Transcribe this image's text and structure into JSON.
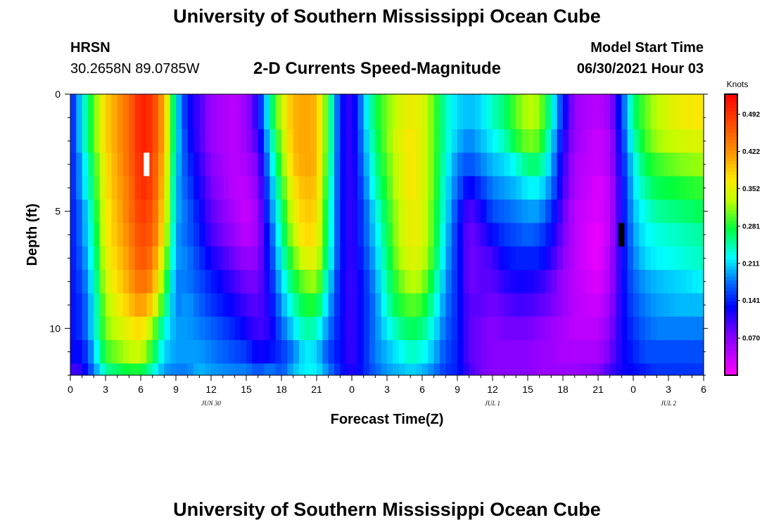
{
  "page": {
    "title_top": "University of Southern Mississippi Ocean Cube",
    "title_bottom": "University of Southern Mississippi Ocean Cube",
    "station": "HRSN",
    "coordinates": "30.2658N  89.0785W",
    "model_start_label": "Model Start Time",
    "model_start_value": "06/30/2021 Hour 03"
  },
  "chart_data": {
    "type": "heatmap",
    "title": "2-D Currents Speed-Magnitude",
    "xlabel": "Forecast Time(Z)",
    "ylabel": "Depth (ft)",
    "x_range_hours": [
      0,
      54
    ],
    "y_range_ft": [
      0,
      12
    ],
    "x_tick_labels": [
      "0",
      "3",
      "6",
      "9",
      "12",
      "15",
      "18",
      "21",
      "0",
      "3",
      "6",
      "9",
      "12",
      "15",
      "18",
      "21",
      "0",
      "3",
      "6"
    ],
    "y_tick_labels": [
      "0",
      "5",
      "10"
    ],
    "y_tick_values": [
      0,
      5,
      10
    ],
    "date_labels": [
      {
        "label": "JUN 30",
        "hour": 12
      },
      {
        "label": "JUL 1",
        "hour": 36
      },
      {
        "label": "JUL 2",
        "hour": 51
      }
    ],
    "colorbar": {
      "unit": "Knots",
      "min": 0.0,
      "max": 0.53,
      "labels": [
        "0.492",
        "0.422",
        "0.352",
        "0.281",
        "0.211",
        "0.141",
        "0.070"
      ],
      "label_values": [
        0.492,
        0.422,
        0.352,
        0.281,
        0.211,
        0.141,
        0.07
      ]
    },
    "depth_rows_ft": [
      0,
      1,
      2,
      3,
      4,
      5,
      6,
      7,
      8,
      9,
      10,
      11,
      12
    ],
    "time_profiles": [
      {
        "hour": 0,
        "speeds": [
          0.13,
          0.13,
          0.13,
          0.13,
          0.13,
          0.13,
          0.13,
          0.13,
          0.13,
          0.13,
          0.13,
          0.13,
          0.1
        ]
      },
      {
        "hour": 1,
        "speeds": [
          0.22,
          0.22,
          0.22,
          0.2,
          0.2,
          0.18,
          0.18,
          0.17,
          0.16,
          0.15,
          0.15,
          0.13,
          0.11
        ]
      },
      {
        "hour": 2,
        "speeds": [
          0.3,
          0.3,
          0.3,
          0.28,
          0.27,
          0.26,
          0.25,
          0.24,
          0.23,
          0.22,
          0.22,
          0.2,
          0.18
        ]
      },
      {
        "hour": 3,
        "speeds": [
          0.38,
          0.38,
          0.38,
          0.37,
          0.37,
          0.36,
          0.36,
          0.35,
          0.34,
          0.32,
          0.31,
          0.29,
          0.25
        ]
      },
      {
        "hour": 5,
        "speeds": [
          0.45,
          0.45,
          0.45,
          0.45,
          0.44,
          0.44,
          0.43,
          0.42,
          0.41,
          0.39,
          0.36,
          0.33,
          0.28
        ]
      },
      {
        "hour": 6,
        "speeds": [
          0.51,
          0.51,
          0.51,
          0.5,
          0.5,
          0.49,
          0.48,
          0.47,
          0.45,
          0.42,
          0.38,
          0.34,
          0.28
        ]
      },
      {
        "hour": 7,
        "speeds": [
          0.49,
          0.49,
          0.49,
          0.48,
          0.48,
          0.47,
          0.46,
          0.44,
          0.42,
          0.38,
          0.32,
          0.28,
          0.24
        ]
      },
      {
        "hour": 8,
        "speeds": [
          0.4,
          0.4,
          0.4,
          0.39,
          0.38,
          0.37,
          0.36,
          0.33,
          0.3,
          0.27,
          0.23,
          0.21,
          0.19
        ]
      },
      {
        "hour": 9,
        "speeds": [
          0.22,
          0.22,
          0.22,
          0.21,
          0.2,
          0.2,
          0.19,
          0.19,
          0.18,
          0.18,
          0.19,
          0.19,
          0.18
        ]
      },
      {
        "hour": 10,
        "speeds": [
          0.13,
          0.13,
          0.14,
          0.15,
          0.16,
          0.17,
          0.17,
          0.18,
          0.18,
          0.19,
          0.19,
          0.19,
          0.18
        ]
      },
      {
        "hour": 11,
        "speeds": [
          0.1,
          0.1,
          0.1,
          0.11,
          0.12,
          0.13,
          0.14,
          0.15,
          0.16,
          0.17,
          0.18,
          0.19,
          0.2
        ]
      },
      {
        "hour": 12,
        "speeds": [
          0.06,
          0.06,
          0.06,
          0.07,
          0.08,
          0.09,
          0.1,
          0.12,
          0.14,
          0.15,
          0.17,
          0.18,
          0.19
        ]
      },
      {
        "hour": 14,
        "speeds": [
          0.04,
          0.04,
          0.04,
          0.04,
          0.04,
          0.05,
          0.06,
          0.08,
          0.1,
          0.12,
          0.14,
          0.16,
          0.18
        ]
      },
      {
        "hour": 15,
        "speeds": [
          0.06,
          0.06,
          0.06,
          0.05,
          0.04,
          0.03,
          0.04,
          0.06,
          0.08,
          0.1,
          0.12,
          0.15,
          0.18
        ]
      },
      {
        "hour": 16,
        "speeds": [
          0.12,
          0.12,
          0.1,
          0.08,
          0.07,
          0.06,
          0.06,
          0.07,
          0.08,
          0.09,
          0.1,
          0.12,
          0.16
        ]
      },
      {
        "hour": 17,
        "speeds": [
          0.24,
          0.24,
          0.22,
          0.2,
          0.18,
          0.17,
          0.15,
          0.14,
          0.13,
          0.12,
          0.11,
          0.13,
          0.18
        ]
      },
      {
        "hour": 18,
        "speeds": [
          0.34,
          0.34,
          0.32,
          0.3,
          0.28,
          0.26,
          0.25,
          0.23,
          0.21,
          0.19,
          0.17,
          0.15,
          0.16
        ]
      },
      {
        "hour": 19,
        "speeds": [
          0.4,
          0.4,
          0.4,
          0.39,
          0.37,
          0.35,
          0.33,
          0.3,
          0.27,
          0.24,
          0.21,
          0.18,
          0.2
        ]
      },
      {
        "hour": 20,
        "speeds": [
          0.41,
          0.41,
          0.41,
          0.41,
          0.4,
          0.39,
          0.38,
          0.35,
          0.31,
          0.28,
          0.25,
          0.22,
          0.22
        ]
      },
      {
        "hour": 21,
        "speeds": [
          0.4,
          0.4,
          0.4,
          0.4,
          0.39,
          0.38,
          0.37,
          0.35,
          0.32,
          0.28,
          0.24,
          0.21,
          0.22
        ]
      },
      {
        "hour": 22,
        "speeds": [
          0.28,
          0.28,
          0.28,
          0.27,
          0.26,
          0.25,
          0.25,
          0.24,
          0.22,
          0.2,
          0.18,
          0.16,
          0.18
        ]
      },
      {
        "hour": 23,
        "speeds": [
          0.14,
          0.14,
          0.14,
          0.14,
          0.14,
          0.14,
          0.14,
          0.14,
          0.13,
          0.13,
          0.13,
          0.13,
          0.14
        ]
      },
      {
        "hour": 24,
        "speeds": [
          0.1,
          0.1,
          0.1,
          0.1,
          0.1,
          0.1,
          0.1,
          0.1,
          0.1,
          0.1,
          0.1,
          0.1,
          0.11
        ]
      },
      {
        "hour": 25,
        "speeds": [
          0.2,
          0.2,
          0.19,
          0.18,
          0.17,
          0.16,
          0.16,
          0.15,
          0.14,
          0.14,
          0.14,
          0.14,
          0.14
        ]
      },
      {
        "hour": 26,
        "speeds": [
          0.27,
          0.27,
          0.26,
          0.25,
          0.24,
          0.22,
          0.21,
          0.2,
          0.19,
          0.18,
          0.18,
          0.18,
          0.17
        ]
      },
      {
        "hour": 27,
        "speeds": [
          0.31,
          0.31,
          0.31,
          0.3,
          0.29,
          0.28,
          0.27,
          0.26,
          0.25,
          0.24,
          0.22,
          0.2,
          0.19
        ]
      },
      {
        "hour": 28,
        "speeds": [
          0.34,
          0.34,
          0.35,
          0.34,
          0.34,
          0.33,
          0.33,
          0.32,
          0.3,
          0.28,
          0.25,
          0.22,
          0.2
        ]
      },
      {
        "hour": 29,
        "speeds": [
          0.36,
          0.36,
          0.37,
          0.37,
          0.37,
          0.36,
          0.36,
          0.35,
          0.33,
          0.3,
          0.27,
          0.24,
          0.21
        ]
      },
      {
        "hour": 30,
        "speeds": [
          0.35,
          0.35,
          0.35,
          0.35,
          0.35,
          0.35,
          0.35,
          0.34,
          0.32,
          0.29,
          0.26,
          0.23,
          0.2
        ]
      },
      {
        "hour": 31,
        "speeds": [
          0.3,
          0.3,
          0.3,
          0.3,
          0.3,
          0.29,
          0.29,
          0.28,
          0.26,
          0.24,
          0.22,
          0.2,
          0.18
        ]
      },
      {
        "hour": 32,
        "speeds": [
          0.24,
          0.24,
          0.24,
          0.23,
          0.22,
          0.22,
          0.21,
          0.2,
          0.19,
          0.18,
          0.17,
          0.16,
          0.15
        ]
      },
      {
        "hour": 33,
        "speeds": [
          0.21,
          0.21,
          0.2,
          0.18,
          0.17,
          0.15,
          0.14,
          0.14,
          0.14,
          0.14,
          0.14,
          0.14,
          0.14
        ]
      },
      {
        "hour": 34,
        "speeds": [
          0.2,
          0.2,
          0.18,
          0.16,
          0.12,
          0.09,
          0.08,
          0.08,
          0.08,
          0.09,
          0.09,
          0.09,
          0.1
        ]
      },
      {
        "hour": 35,
        "speeds": [
          0.21,
          0.21,
          0.2,
          0.18,
          0.15,
          0.12,
          0.1,
          0.09,
          0.09,
          0.09,
          0.08,
          0.08,
          0.08
        ]
      },
      {
        "hour": 36,
        "speeds": [
          0.24,
          0.24,
          0.22,
          0.2,
          0.18,
          0.16,
          0.13,
          0.1,
          0.09,
          0.08,
          0.07,
          0.07,
          0.07
        ]
      },
      {
        "hour": 37,
        "speeds": [
          0.26,
          0.26,
          0.24,
          0.21,
          0.19,
          0.17,
          0.15,
          0.13,
          0.11,
          0.09,
          0.08,
          0.07,
          0.07
        ]
      },
      {
        "hour": 38,
        "speeds": [
          0.3,
          0.3,
          0.28,
          0.23,
          0.2,
          0.18,
          0.16,
          0.14,
          0.12,
          0.1,
          0.08,
          0.07,
          0.07
        ]
      },
      {
        "hour": 39,
        "speeds": [
          0.33,
          0.33,
          0.31,
          0.26,
          0.22,
          0.19,
          0.17,
          0.14,
          0.12,
          0.1,
          0.08,
          0.07,
          0.07
        ]
      },
      {
        "hour": 40,
        "speeds": [
          0.32,
          0.32,
          0.3,
          0.26,
          0.22,
          0.19,
          0.16,
          0.14,
          0.11,
          0.09,
          0.07,
          0.06,
          0.06
        ]
      },
      {
        "hour": 41,
        "speeds": [
          0.24,
          0.24,
          0.22,
          0.2,
          0.18,
          0.15,
          0.13,
          0.11,
          0.09,
          0.08,
          0.06,
          0.06,
          0.06
        ]
      },
      {
        "hour": 42,
        "speeds": [
          0.14,
          0.14,
          0.12,
          0.11,
          0.1,
          0.09,
          0.08,
          0.07,
          0.06,
          0.06,
          0.05,
          0.05,
          0.06
        ]
      },
      {
        "hour": 43,
        "speeds": [
          0.06,
          0.06,
          0.06,
          0.05,
          0.05,
          0.04,
          0.04,
          0.04,
          0.04,
          0.04,
          0.04,
          0.05,
          0.06
        ]
      },
      {
        "hour": 45,
        "speeds": [
          0.04,
          0.04,
          0.03,
          0.03,
          0.02,
          0.02,
          0.01,
          0.01,
          0.02,
          0.03,
          0.04,
          0.05,
          0.07
        ]
      },
      {
        "hour": 46,
        "speeds": [
          0.06,
          0.06,
          0.05,
          0.05,
          0.04,
          0.04,
          0.04,
          0.05,
          0.05,
          0.06,
          0.07,
          0.08,
          0.1
        ]
      },
      {
        "hour": 47,
        "speeds": [
          0.15,
          0.15,
          0.14,
          0.13,
          0.12,
          0.12,
          0.12,
          0.12,
          0.12,
          0.12,
          0.12,
          0.12,
          0.12
        ]
      },
      {
        "hour": 48,
        "speeds": [
          0.26,
          0.26,
          0.24,
          0.22,
          0.21,
          0.2,
          0.19,
          0.18,
          0.17,
          0.16,
          0.15,
          0.14,
          0.13
        ]
      },
      {
        "hour": 49,
        "speeds": [
          0.3,
          0.3,
          0.29,
          0.27,
          0.25,
          0.23,
          0.22,
          0.21,
          0.19,
          0.18,
          0.17,
          0.16,
          0.14
        ]
      },
      {
        "hour": 50,
        "speeds": [
          0.33,
          0.33,
          0.32,
          0.29,
          0.27,
          0.25,
          0.23,
          0.22,
          0.2,
          0.19,
          0.18,
          0.16,
          0.15
        ]
      },
      {
        "hour": 52,
        "speeds": [
          0.36,
          0.36,
          0.34,
          0.31,
          0.28,
          0.26,
          0.24,
          0.23,
          0.21,
          0.2,
          0.18,
          0.16,
          0.15
        ]
      },
      {
        "hour": 54,
        "speeds": [
          0.37,
          0.37,
          0.35,
          0.32,
          0.29,
          0.27,
          0.25,
          0.24,
          0.22,
          0.2,
          0.18,
          0.16,
          0.15
        ]
      }
    ],
    "markers": [
      {
        "hour": 6.5,
        "depth_top_ft": 2.5,
        "depth_bottom_ft": 3.5,
        "color": "#ffffff"
      },
      {
        "hour": 47.0,
        "depth_top_ft": 5.5,
        "depth_bottom_ft": 6.5,
        "color": "#000000"
      }
    ]
  }
}
